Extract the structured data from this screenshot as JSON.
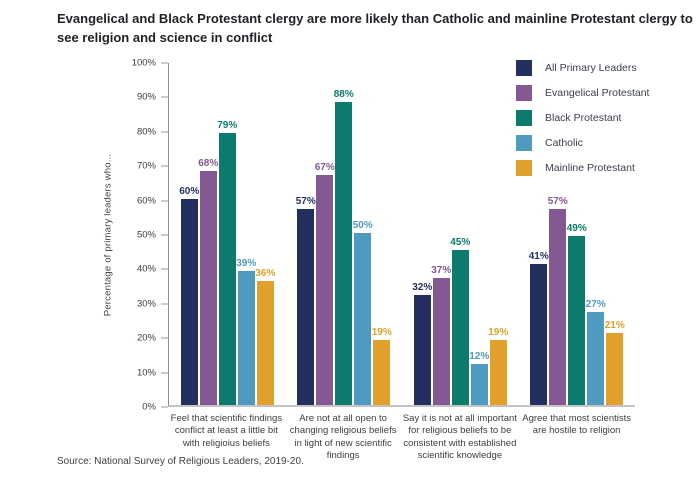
{
  "title": "Evangelical and Black Protestant clergy are more likely than Catholic and mainline Protestant clergy to see religion and science in conflict",
  "source": "Source: National Survey of Religious Leaders, 2019-20.",
  "chart_data": {
    "type": "bar",
    "title": "Evangelical and Black Protestant clergy are more likely than Catholic and mainline Protestant clergy to see religion and science in conflict",
    "ylabel": "Percentage of primary leaders who...",
    "xlabel": "",
    "ylim": [
      0,
      100
    ],
    "y_ticks": [
      "0%",
      "10%",
      "20%",
      "30%",
      "40%",
      "50%",
      "60%",
      "70%",
      "80%",
      "90%",
      "100%"
    ],
    "grid": false,
    "legend_position": "top-right",
    "value_label_suffix": "%",
    "categories": [
      "Feel that scientific findings conflict at least a little bit with religioius beliefs",
      "Are not at all open to changing religious beliefs in light of new scientific findings",
      "Say it is not at all important for religious beliefs to be consistent with established scientific knowledge",
      "Agree that most scientists are hostile to religion"
    ],
    "series": [
      {
        "name": "All Primary Leaders",
        "color": "#23305f",
        "values": [
          60,
          57,
          32,
          41
        ]
      },
      {
        "name": "Evangelical Protestant",
        "color": "#835893",
        "values": [
          68,
          67,
          37,
          57
        ]
      },
      {
        "name": "Black Protestant",
        "color": "#0c7a6c",
        "values": [
          79,
          88,
          45,
          49
        ]
      },
      {
        "name": "Catholic",
        "color": "#4e9ac1",
        "values": [
          39,
          50,
          12,
          27
        ]
      },
      {
        "name": "Mainline Protestant",
        "color": "#e0a02b",
        "values": [
          36,
          19,
          19,
          21
        ]
      }
    ]
  }
}
